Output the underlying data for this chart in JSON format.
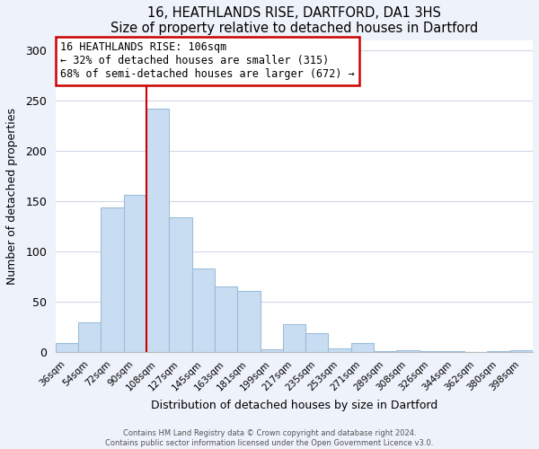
{
  "title": "16, HEATHLANDS RISE, DARTFORD, DA1 3HS",
  "subtitle": "Size of property relative to detached houses in Dartford",
  "xlabel": "Distribution of detached houses by size in Dartford",
  "ylabel": "Number of detached properties",
  "bar_labels": [
    "36sqm",
    "54sqm",
    "72sqm",
    "90sqm",
    "108sqm",
    "127sqm",
    "145sqm",
    "163sqm",
    "181sqm",
    "199sqm",
    "217sqm",
    "235sqm",
    "253sqm",
    "271sqm",
    "289sqm",
    "308sqm",
    "326sqm",
    "344sqm",
    "362sqm",
    "380sqm",
    "398sqm"
  ],
  "bar_values": [
    9,
    30,
    144,
    156,
    242,
    134,
    83,
    65,
    61,
    3,
    28,
    19,
    4,
    9,
    1,
    2,
    1,
    1,
    0,
    1,
    2
  ],
  "bar_color": "#c9ddf2",
  "bar_edgecolor": "#9bbdd8",
  "vline_color": "#cc0000",
  "vline_index": 4,
  "ylim": [
    0,
    310
  ],
  "yticks": [
    0,
    50,
    100,
    150,
    200,
    250,
    300
  ],
  "annotation_title": "16 HEATHLANDS RISE: 106sqm",
  "annotation_line1": "← 32% of detached houses are smaller (315)",
  "annotation_line2": "68% of semi-detached houses are larger (672) →",
  "annotation_box_facecolor": "#ffffff",
  "annotation_box_edgecolor": "#cc0000",
  "footer1": "Contains HM Land Registry data © Crown copyright and database right 2024.",
  "footer2": "Contains public sector information licensed under the Open Government Licence v3.0.",
  "fig_facecolor": "#eef2fa",
  "plot_facecolor": "#ffffff",
  "grid_color": "#d0d8e8"
}
